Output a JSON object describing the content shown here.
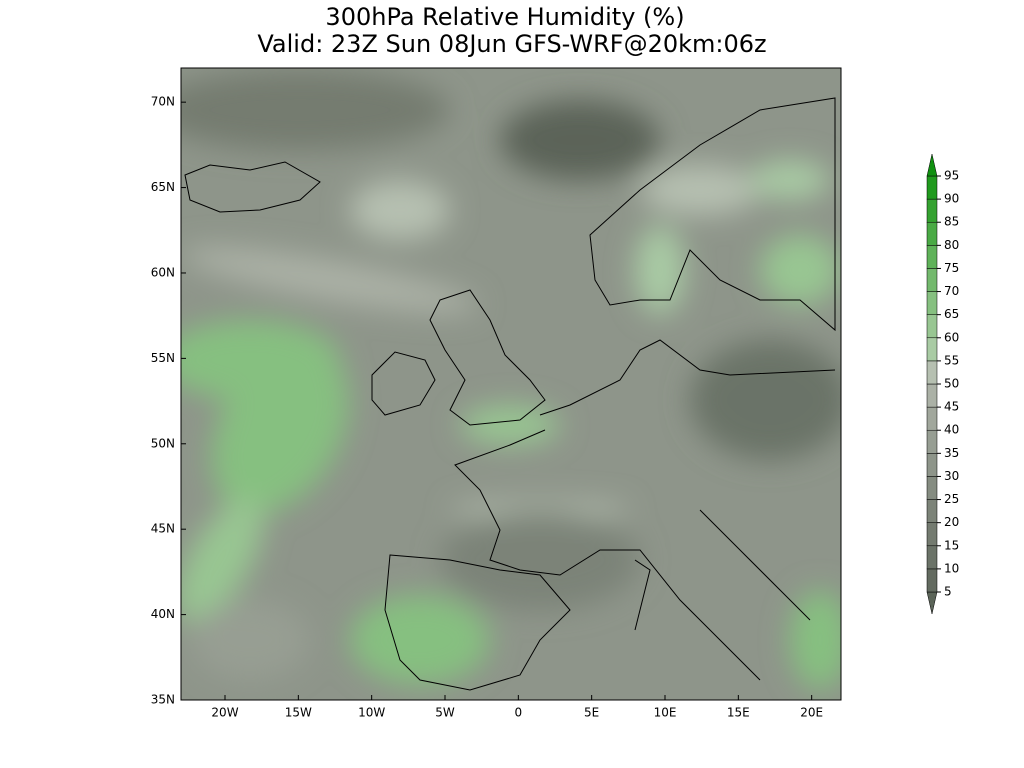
{
  "title": [
    "300hPa Relative Humidity (%)",
    "Valid: 23Z Sun 08Jun GFS-WRF@20km:06z"
  ],
  "map": {
    "lat_range": [
      35,
      72
    ],
    "lon_range": [
      -23,
      22
    ],
    "lat_ticks": [
      {
        "value": 70,
        "label": "70N"
      },
      {
        "value": 65,
        "label": "65N"
      },
      {
        "value": 60,
        "label": "60N"
      },
      {
        "value": 55,
        "label": "55N"
      },
      {
        "value": 50,
        "label": "50N"
      },
      {
        "value": 45,
        "label": "45N"
      },
      {
        "value": 40,
        "label": "40N"
      },
      {
        "value": 35,
        "label": "35N"
      }
    ],
    "lon_ticks": [
      {
        "value": -20,
        "label": "20W"
      },
      {
        "value": -15,
        "label": "15W"
      },
      {
        "value": -10,
        "label": "10W"
      },
      {
        "value": -5,
        "label": "5W"
      },
      0,
      {
        "value": 5,
        "label": "5E"
      },
      {
        "value": 10,
        "label": "10E"
      },
      {
        "value": 15,
        "label": "15E"
      },
      {
        "value": 20,
        "label": "20E"
      }
    ]
  },
  "colorbar": {
    "levels": [
      5,
      10,
      15,
      20,
      25,
      30,
      35,
      40,
      45,
      50,
      55,
      60,
      65,
      70,
      75,
      80,
      85,
      90,
      95
    ],
    "colors": [
      "#5b6458",
      "#636b60",
      "#6b7368",
      "#747b70",
      "#7c8378",
      "#858c81",
      "#8e958a",
      "#979e93",
      "#a1a79c",
      "#abb1a6",
      "#b6c0b1",
      "#a9cba4",
      "#98c692",
      "#86c080",
      "#73b96d",
      "#5fb259",
      "#4aaa45",
      "#35a231",
      "#209a1e",
      "#109010"
    ]
  }
}
